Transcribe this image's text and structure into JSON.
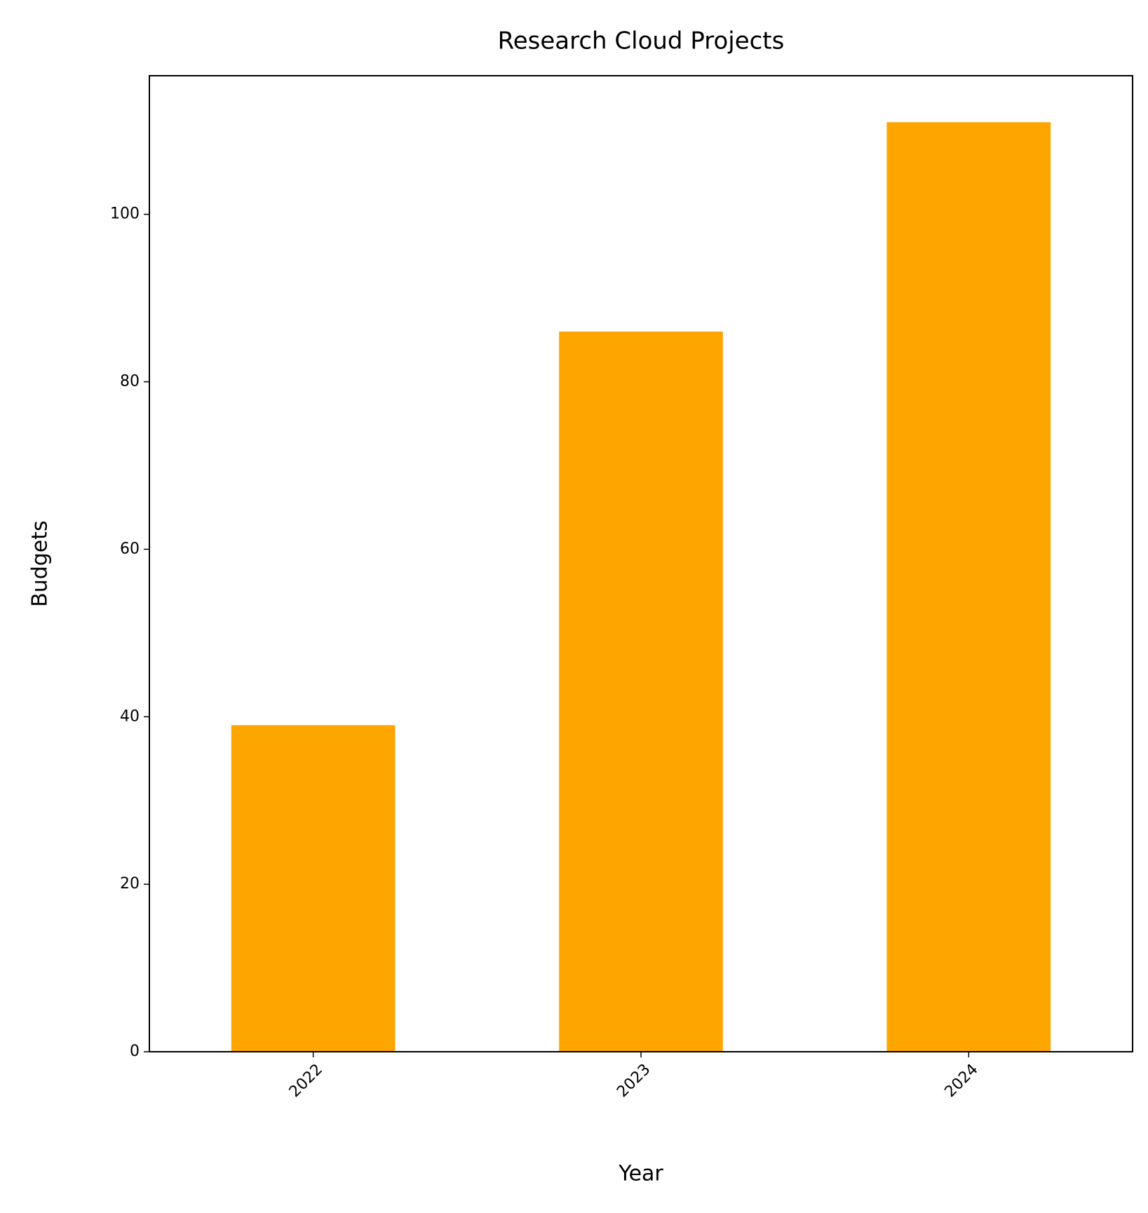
{
  "chart_data": {
    "type": "bar",
    "title": "Research Cloud Projects",
    "x_label": "Year",
    "y_label": "Budgets",
    "categories": [
      "2022",
      "2023",
      "2024"
    ],
    "values": [
      39,
      86,
      111
    ],
    "color": "#ffa500",
    "ylim": [
      0,
      116.55
    ],
    "yticks": [
      0,
      20,
      40,
      60,
      80,
      100
    ],
    "grid": false
  }
}
